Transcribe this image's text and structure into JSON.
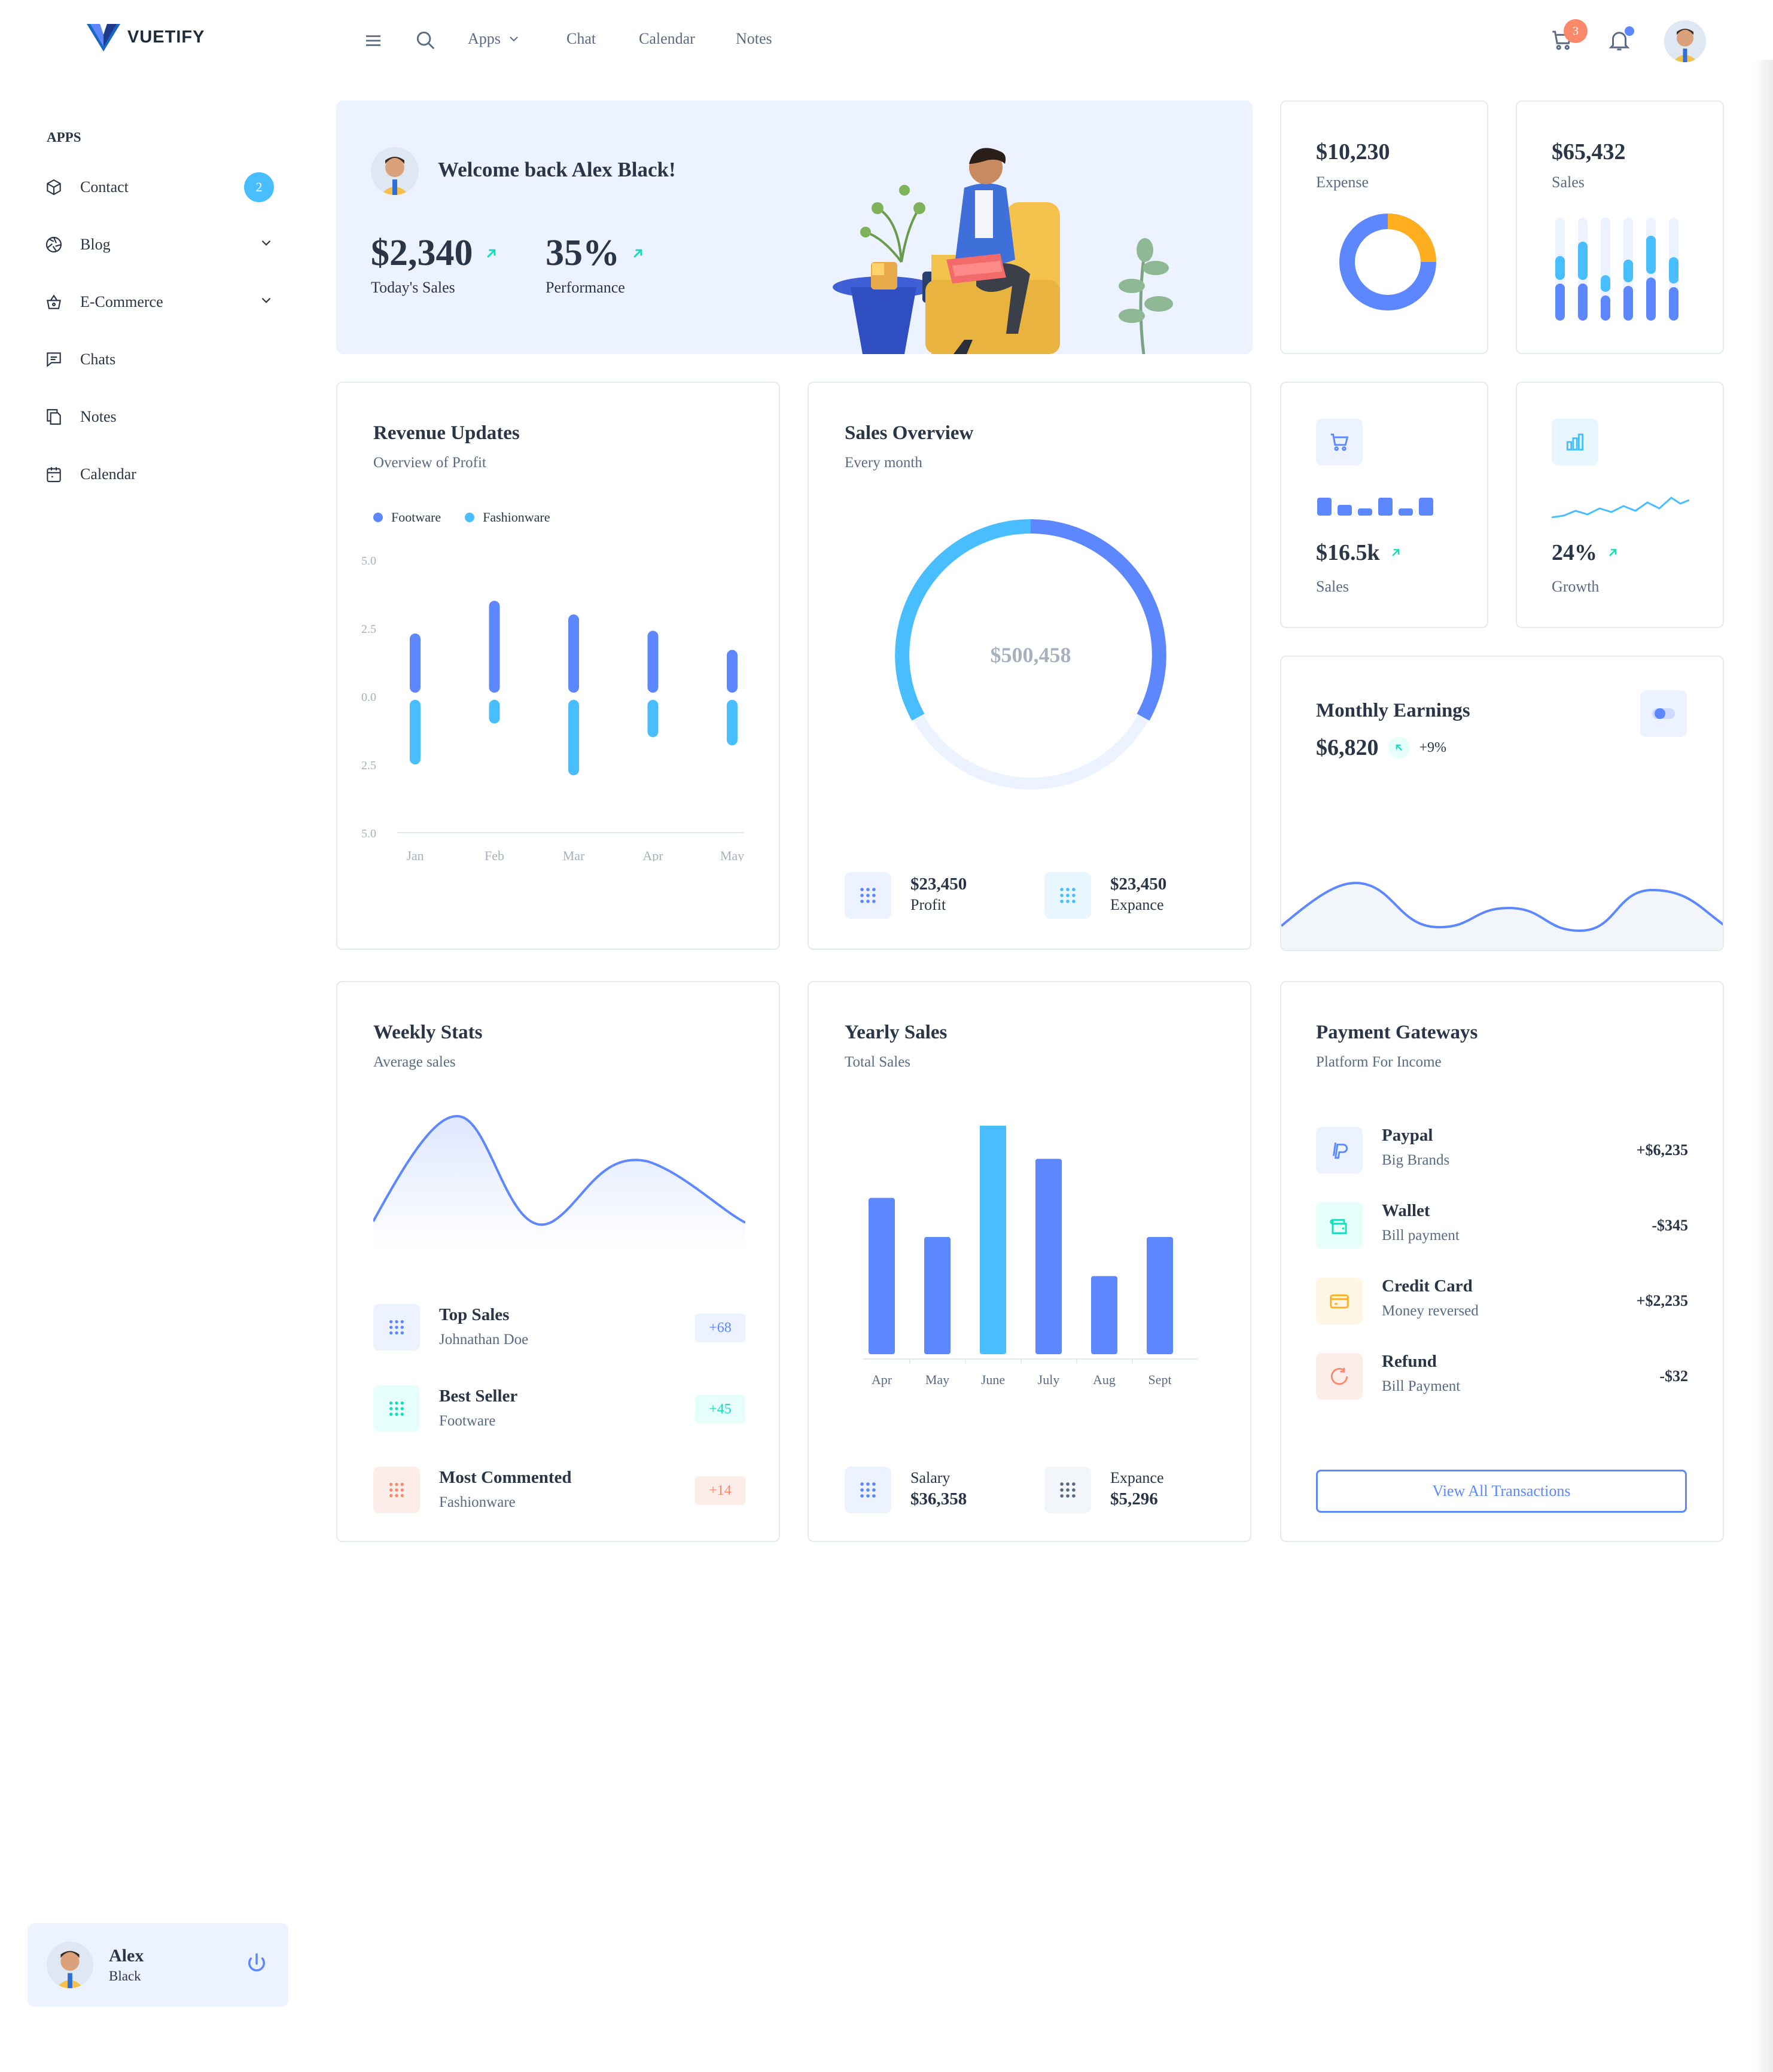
{
  "brand": {
    "name": "VUETIFY"
  },
  "sidebar": {
    "section_label": "APPS",
    "items": [
      {
        "label": "Contact",
        "icon": "box-icon",
        "badge": "2"
      },
      {
        "label": "Blog",
        "icon": "aperture-icon"
      },
      {
        "label": "E-Commerce",
        "icon": "basket-icon"
      },
      {
        "label": "Chats",
        "icon": "message-icon"
      },
      {
        "label": "Notes",
        "icon": "copy-icon"
      },
      {
        "label": "Calendar",
        "icon": "calendar-icon"
      }
    ],
    "user": {
      "first": "Alex",
      "last": "Black"
    }
  },
  "header": {
    "links": [
      "Apps",
      "Chat",
      "Calendar",
      "Notes"
    ],
    "cart_count": "3"
  },
  "welcome": {
    "greeting": "Welcome back Alex Black!",
    "sales_value": "$2,340",
    "sales_label": "Today's Sales",
    "perf_value": "35%",
    "perf_label": "Performance"
  },
  "expense": {
    "value": "$10,230",
    "label": "Expense",
    "donut_fraction": 0.25
  },
  "sales_card": {
    "value": "$65,432",
    "label": "Sales"
  },
  "sales_small": {
    "value": "$16.5k",
    "label": "Sales"
  },
  "growth": {
    "value": "24%",
    "label": "Growth"
  },
  "revenue": {
    "title": "Revenue Updates",
    "subtitle": "Overview of Profit",
    "legend": [
      "Footware",
      "Fashionware"
    ]
  },
  "sales_overview": {
    "title": "Sales Overview",
    "subtitle": "Every month",
    "center_value": "$500,458",
    "profit_value": "$23,450",
    "profit_label": "Profit",
    "expense_value": "$23,450",
    "expense_label": "Expance"
  },
  "monthly": {
    "title": "Monthly Earnings",
    "value": "$6,820",
    "change": "+9%"
  },
  "weekly": {
    "title": "Weekly Stats",
    "subtitle": "Average sales",
    "rows": [
      {
        "title": "Top Sales",
        "sub": "Johnathan Doe",
        "chip": "+68"
      },
      {
        "title": "Best Seller",
        "sub": "Footware",
        "chip": "+45"
      },
      {
        "title": "Most Commented",
        "sub": "Fashionware",
        "chip": "+14"
      }
    ]
  },
  "yearly": {
    "title": "Yearly Sales",
    "subtitle": "Total Sales",
    "salary_label": "Salary",
    "salary_value": "$36,358",
    "expense_label": "Expance",
    "expense_value": "$5,296"
  },
  "payments": {
    "title": "Payment Gateways",
    "subtitle": "Platform For Income",
    "rows": [
      {
        "title": "Paypal",
        "sub": "Big Brands",
        "amount": "+$6,235"
      },
      {
        "title": "Wallet",
        "sub": "Bill payment",
        "amount": "-$345"
      },
      {
        "title": "Credit Card",
        "sub": "Money reversed",
        "amount": "+$2,235"
      },
      {
        "title": "Refund",
        "sub": "Bill Payment",
        "amount": "-$32"
      }
    ],
    "button": "View All Transactions"
  },
  "colors": {
    "primary": "#5d87ff",
    "secondary": "#49beff",
    "success": "#13deb9",
    "warning": "#ffae1f",
    "error": "#fa896b"
  },
  "chart_data": [
    {
      "type": "bar",
      "title": "Revenue Updates",
      "categories": [
        "Jan",
        "Feb",
        "Mar",
        "Apr",
        "May"
      ],
      "yticks": [
        "5.0",
        "2.5",
        "0.0",
        "2.5",
        "5.0"
      ],
      "ylim": [
        -5,
        5
      ],
      "series": [
        {
          "name": "Footware",
          "values": [
            2.3,
            3.5,
            3.0,
            2.4,
            1.7
          ]
        },
        {
          "name": "Fashionware",
          "values": [
            -2.5,
            -1.0,
            -2.9,
            -1.5,
            -1.8
          ]
        }
      ]
    },
    {
      "type": "bar",
      "title": "Yearly Sales",
      "categories": [
        "Apr",
        "May",
        "June",
        "July",
        "Aug",
        "Sept"
      ],
      "values": [
        2.0,
        1.5,
        3.0,
        2.5,
        1.0,
        1.5
      ],
      "highlight_index": 2
    }
  ]
}
